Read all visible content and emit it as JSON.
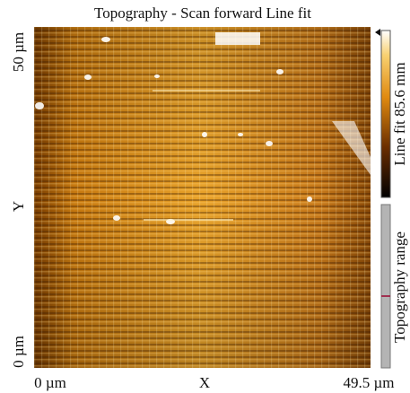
{
  "title": "Topography - Scan forward Line fit",
  "y_axis": {
    "top": "50 µm",
    "name": "Y",
    "bottom": "0 µm"
  },
  "x_axis": {
    "left": "0 µm",
    "name": "X",
    "right": "49.5 µm"
  },
  "colorbar_label": "Line fit 85.6 mm",
  "range_label": "Topography range"
}
